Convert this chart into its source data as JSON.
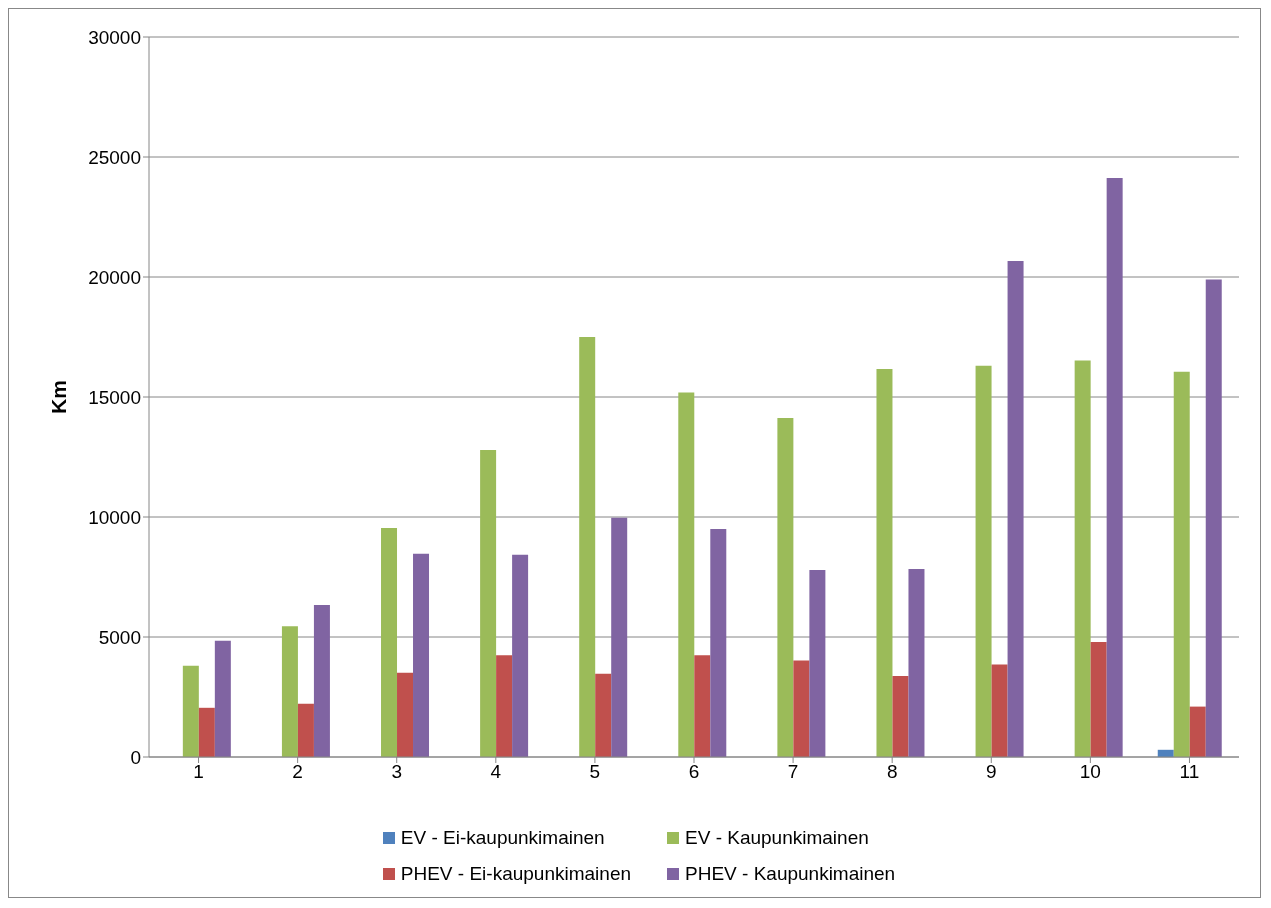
{
  "chart_data": {
    "type": "bar",
    "ylabel": "Km",
    "categories": [
      "1",
      "2",
      "3",
      "4",
      "5",
      "6",
      "7",
      "8",
      "9",
      "10",
      "11"
    ],
    "series": [
      {
        "name": "EV - Ei-kaupunkimainen",
        "color": "#4f81bd",
        "values": [
          0,
          0,
          0,
          0,
          0,
          0,
          0,
          0,
          0,
          0,
          300
        ]
      },
      {
        "name": "EV - Kaupunkimainen",
        "color": "#9bbb59",
        "values": [
          3800,
          5450,
          9540,
          12790,
          17500,
          15190,
          14120,
          16170,
          16300,
          16520,
          16050
        ]
      },
      {
        "name": "PHEV - Ei-kaupunkimainen",
        "color": "#c0504d",
        "values": [
          2050,
          2220,
          3510,
          4240,
          3470,
          4240,
          4020,
          3380,
          3850,
          4790,
          2100
        ]
      },
      {
        "name": "PHEV - Kaupunkimainen",
        "color": "#8064a2",
        "values": [
          4840,
          6330,
          8470,
          8430,
          9970,
          9500,
          7790,
          7830,
          20670,
          24130,
          19900
        ]
      }
    ],
    "ylim": [
      0,
      30000
    ],
    "yticks": [
      0,
      5000,
      10000,
      15000,
      20000,
      25000,
      30000
    ],
    "grid": "y",
    "legend": "bottom"
  }
}
